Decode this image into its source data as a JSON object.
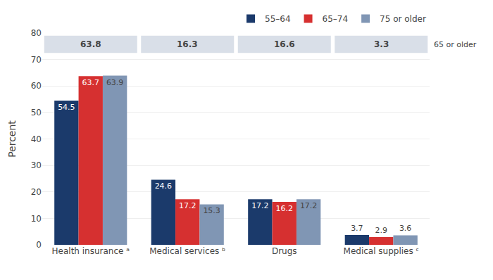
{
  "chart_data": {
    "type": "bar",
    "categories": [
      "Health insurance ᵃ",
      "Medical services ᵇ",
      "Drugs",
      "Medical supplies ᶜ"
    ],
    "series": [
      {
        "name": "55–64",
        "color": "#1b3a6b",
        "values": [
          54.5,
          24.6,
          17.2,
          3.7
        ]
      },
      {
        "name": "65–74",
        "color": "#d63030",
        "values": [
          63.7,
          17.2,
          16.2,
          2.9
        ]
      },
      {
        "name": "75 or older",
        "color": "#8096b4",
        "values": [
          63.9,
          15.3,
          17.2,
          3.6
        ]
      }
    ],
    "ylabel": "Percent",
    "ylim": [
      0,
      80
    ],
    "yticks": [
      0,
      10,
      20,
      30,
      40,
      50,
      60,
      70,
      80
    ],
    "grid": true,
    "data_labels": true,
    "legend": "upper right",
    "table": {
      "label": "65 or older",
      "values": [
        63.8,
        16.3,
        16.6,
        3.3
      ],
      "color": "#d9dfe8"
    }
  }
}
